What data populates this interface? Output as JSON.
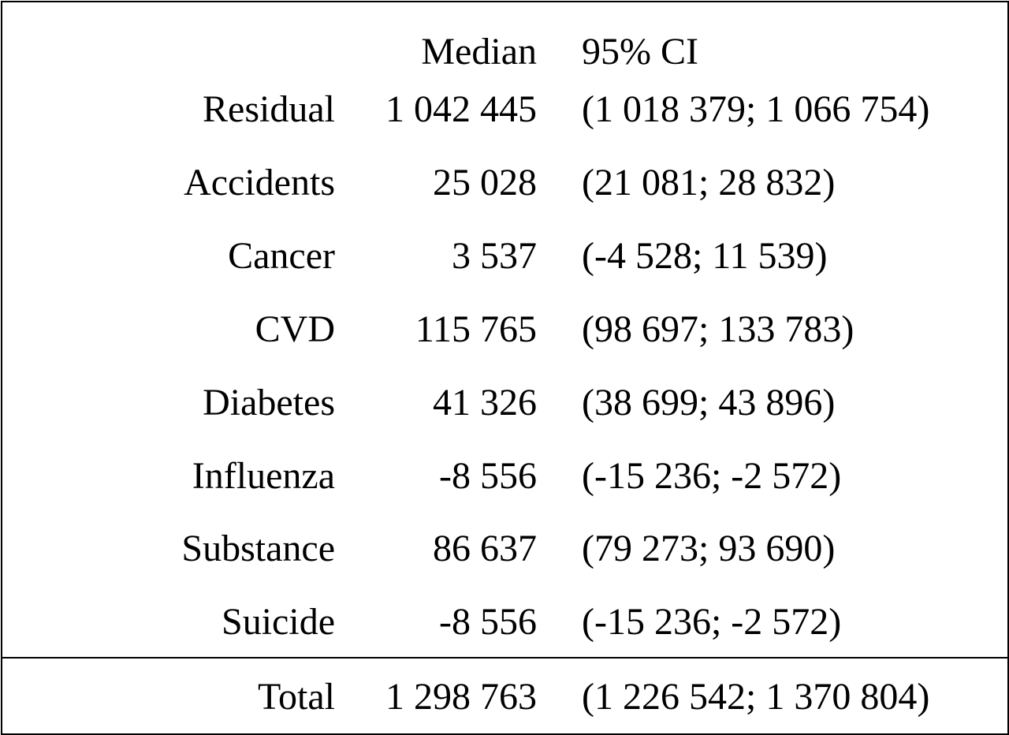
{
  "header": {
    "label": "",
    "median": "Median",
    "ci": "95% CI"
  },
  "rows": [
    {
      "label": "Residual",
      "median": "1 042 445",
      "ci": "(1 018 379; 1 066 754)"
    },
    {
      "label": "Accidents",
      "median": "25 028",
      "ci": "(21 081; 28 832)"
    },
    {
      "label": "Cancer",
      "median": "3 537",
      "ci": "(-4 528; 11 539)"
    },
    {
      "label": "CVD",
      "median": "115 765",
      "ci": "(98 697; 133 783)"
    },
    {
      "label": "Diabetes",
      "median": "41 326",
      "ci": "(38 699; 43 896)"
    },
    {
      "label": "Influenza",
      "median": "-8 556",
      "ci": "(-15 236; -2 572)"
    },
    {
      "label": "Substance",
      "median": "86 637",
      "ci": "(79 273; 93 690)"
    },
    {
      "label": "Suicide",
      "median": "-8 556",
      "ci": "(-15 236; -2 572)"
    }
  ],
  "total": {
    "label": "Total",
    "median": "1 298 763",
    "ci": "(1 226 542; 1 370 804)"
  }
}
